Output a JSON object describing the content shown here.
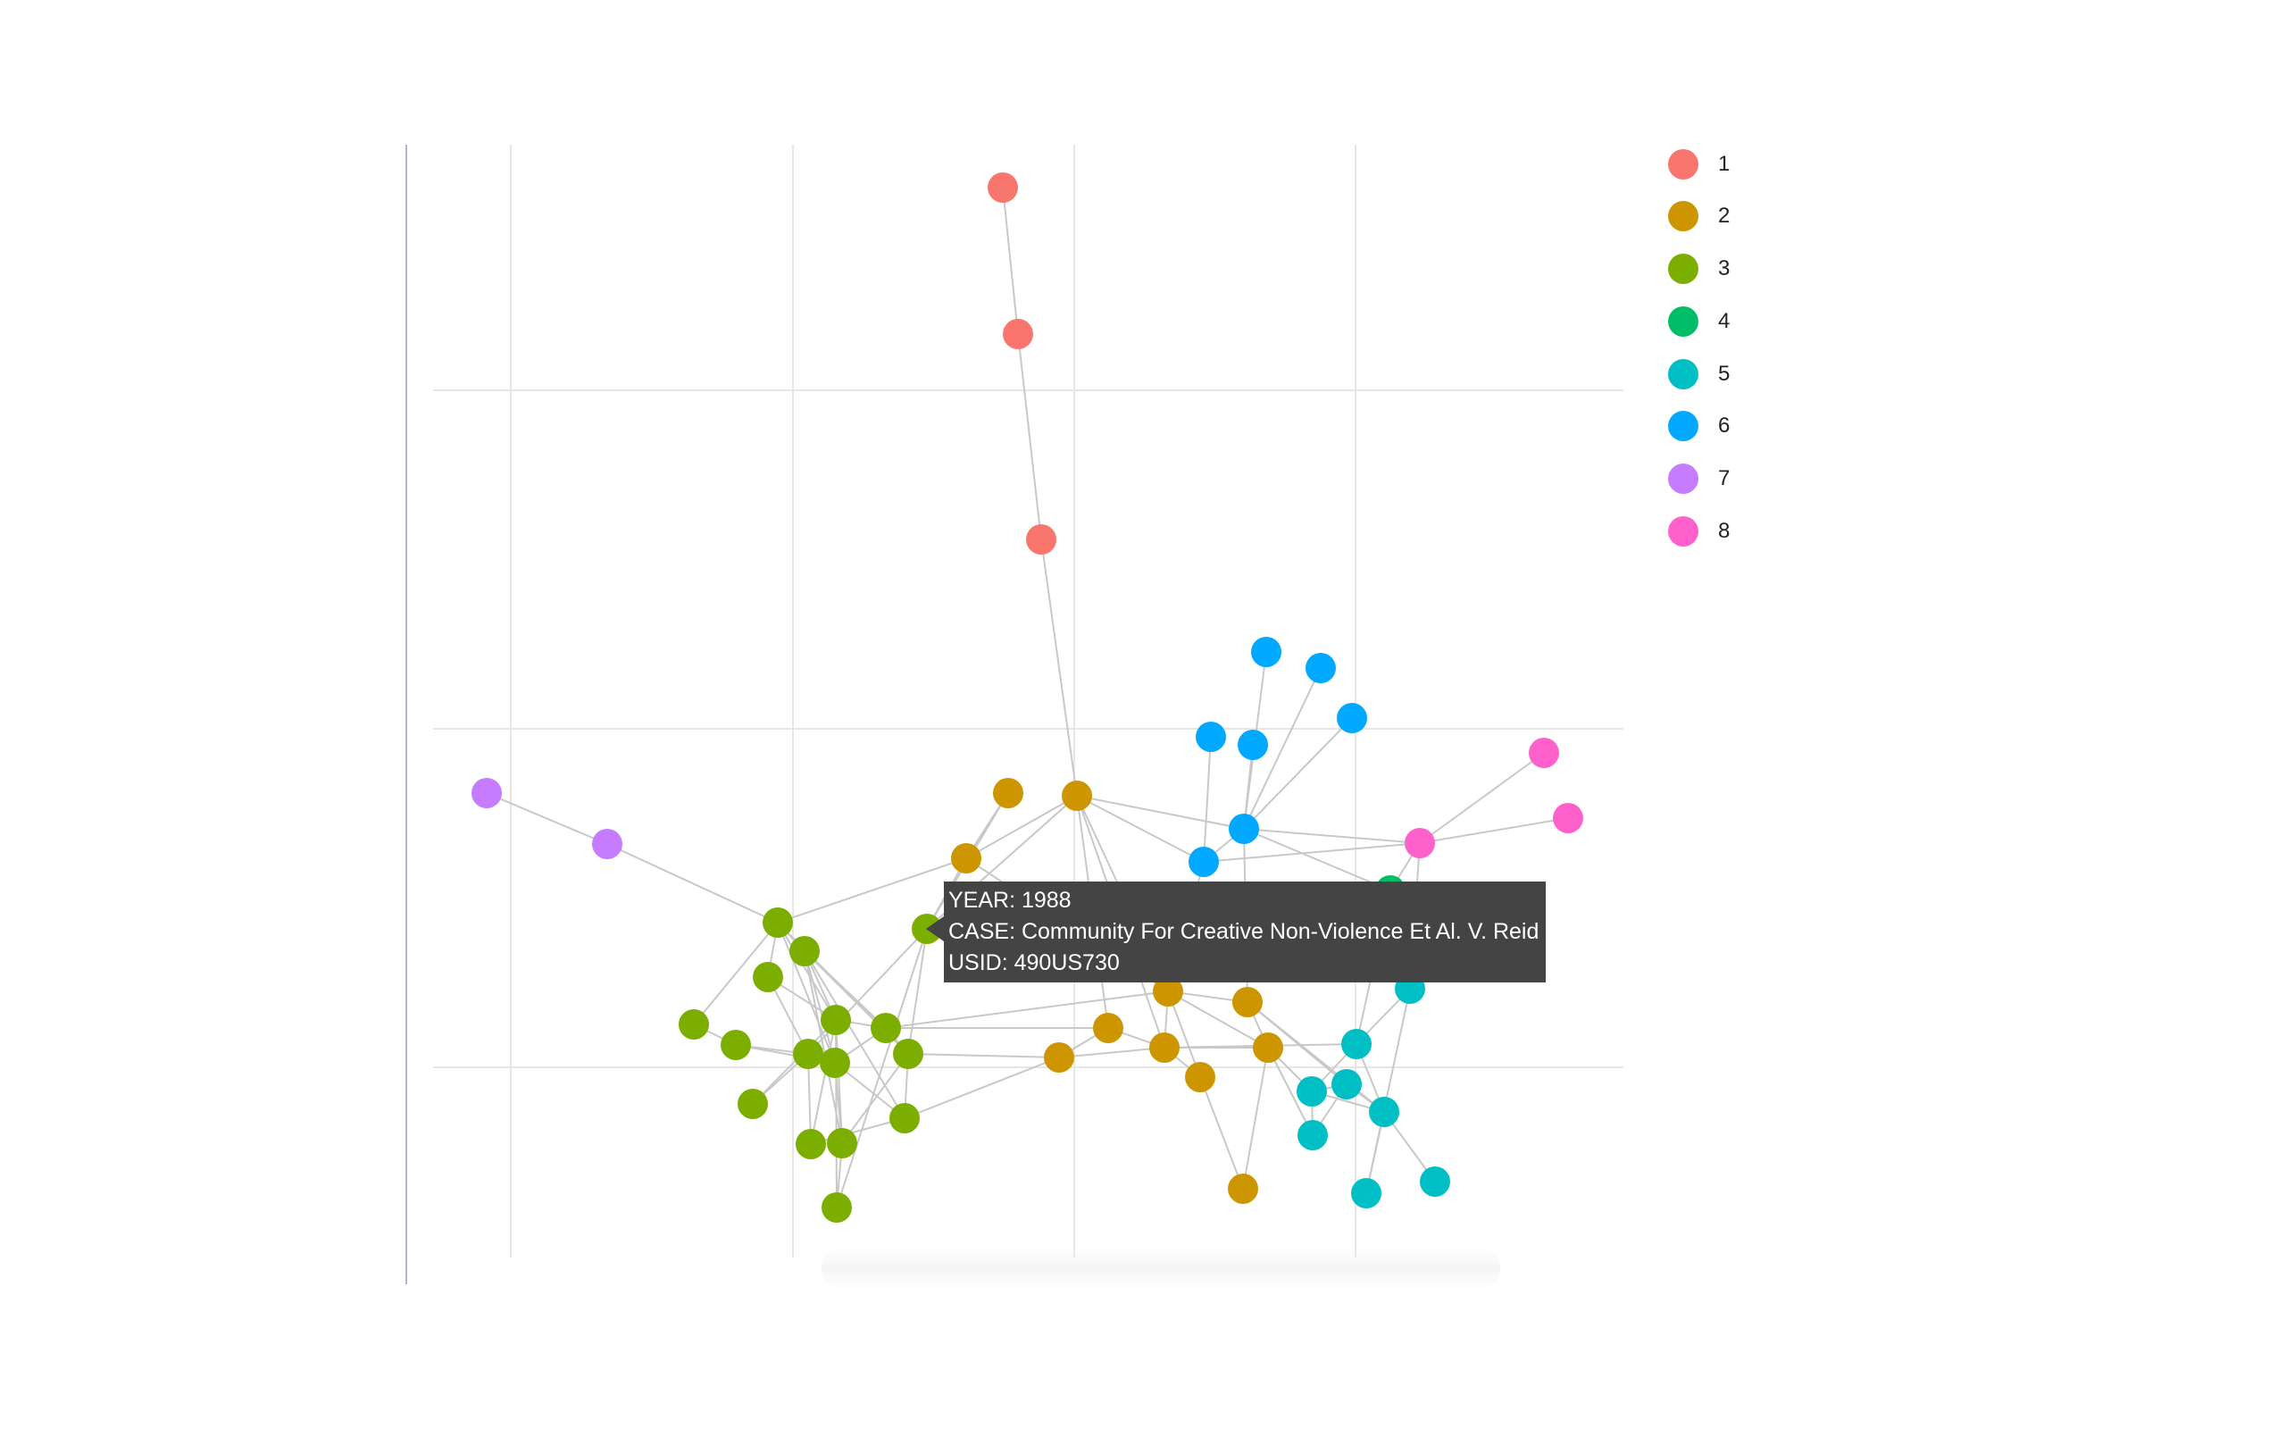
{
  "legend": [
    {
      "id": "1",
      "label": "1",
      "color": "#F8766D"
    },
    {
      "id": "2",
      "label": "2",
      "color": "#CD9600"
    },
    {
      "id": "3",
      "label": "3",
      "color": "#7CAE00"
    },
    {
      "id": "4",
      "label": "4",
      "color": "#00BE67"
    },
    {
      "id": "5",
      "label": "5",
      "color": "#00BFC4"
    },
    {
      "id": "6",
      "label": "6",
      "color": "#00A9FF"
    },
    {
      "id": "7",
      "label": "7",
      "color": "#C77CFF"
    },
    {
      "id": "8",
      "label": "8",
      "color": "#FF61CC"
    }
  ],
  "tooltip": {
    "year": "YEAR: 1988",
    "case": "CASE: Community For Creative Non-Violence Et Al. V. Reid",
    "usid": "USID: 490US730"
  },
  "colors": {
    "edge": "#c8c8c8",
    "grid": "#e6e6e6",
    "axis": "#9999cc",
    "tooltip_bg": "#444444"
  }
}
